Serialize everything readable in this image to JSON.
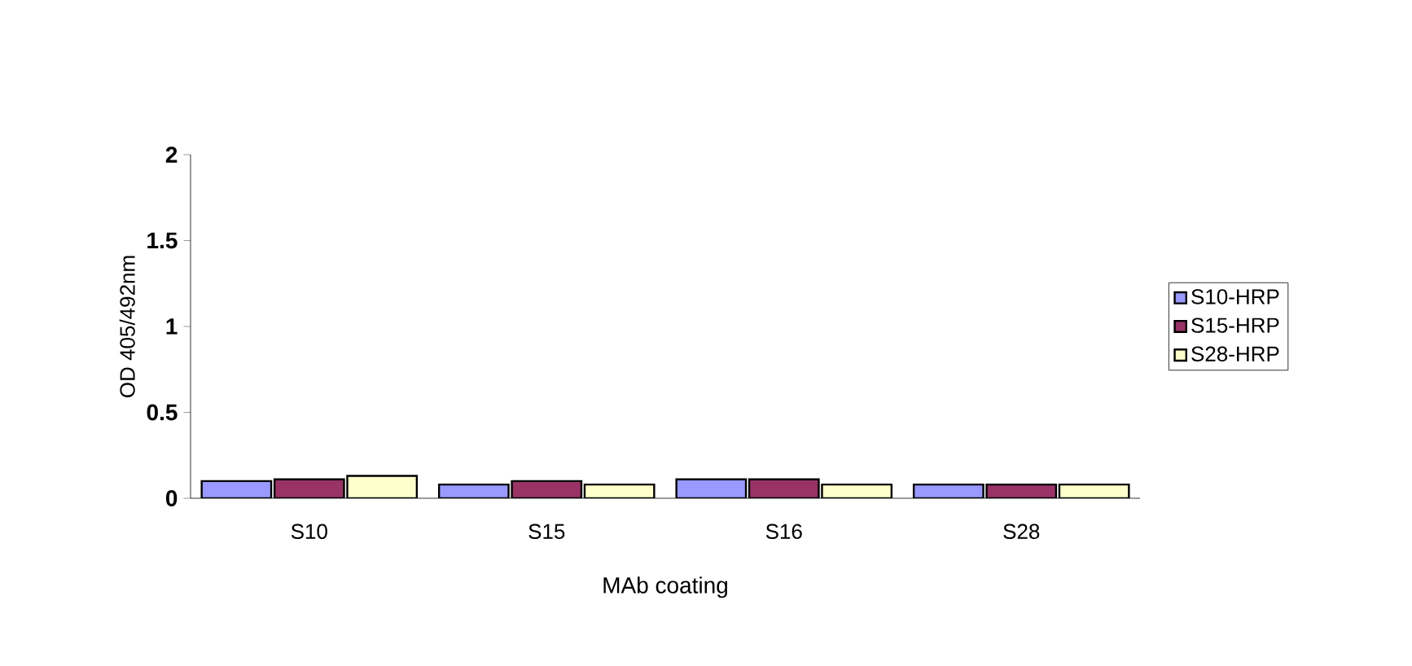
{
  "chart_data": {
    "type": "bar",
    "xlabel": "MAb coating",
    "ylabel": "OD 405/492nm",
    "categories": [
      "S10",
      "S15",
      "S16",
      "S28"
    ],
    "series": [
      {
        "name": "S10-HRP",
        "color": "#9999ff",
        "values": [
          0.1,
          0.08,
          0.11,
          0.08
        ]
      },
      {
        "name": "S15-HRP",
        "color": "#993366",
        "values": [
          0.11,
          0.1,
          0.11,
          0.08
        ]
      },
      {
        "name": "S28-HRP",
        "color": "#ffffcc",
        "values": [
          0.13,
          0.08,
          0.08,
          0.08
        ]
      }
    ],
    "ylim": [
      0,
      2
    ],
    "yticks": [
      0,
      0.5,
      1,
      1.5,
      2
    ],
    "legend": "right",
    "grid": false
  }
}
